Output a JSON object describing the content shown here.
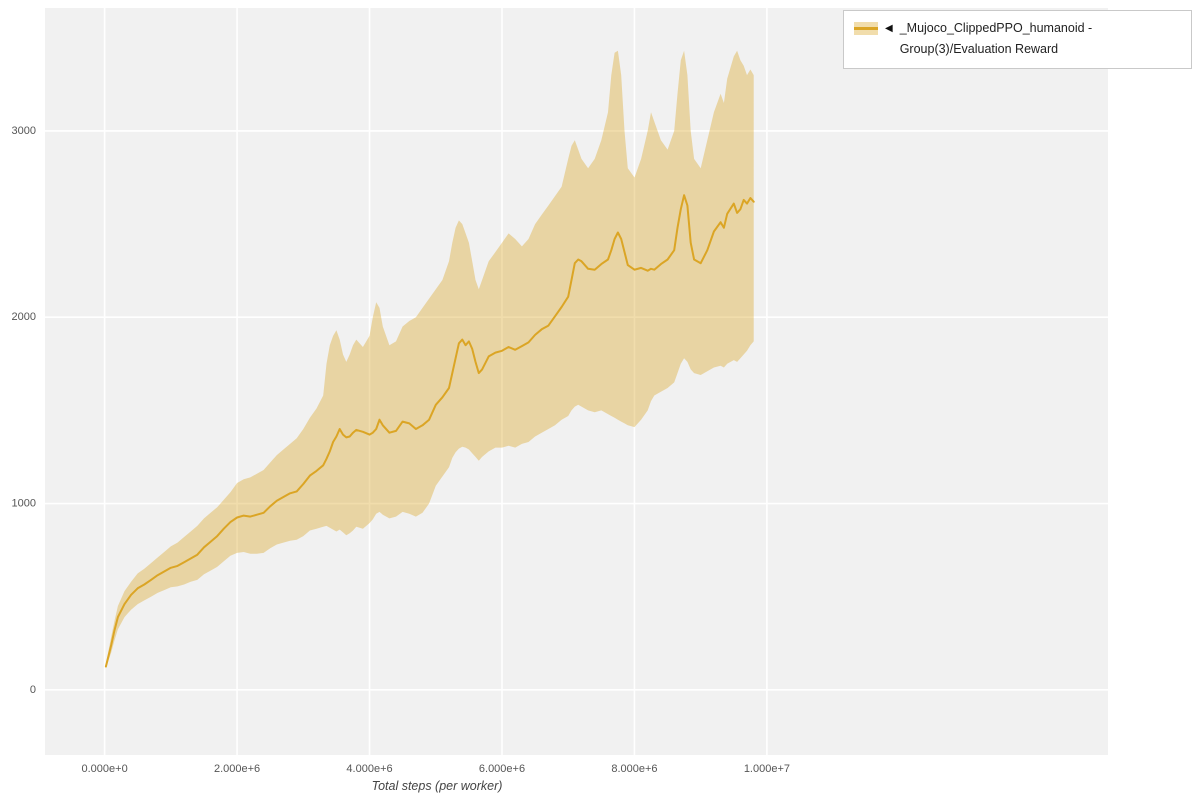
{
  "legend": {
    "marker": "◀",
    "label": "_Mujoco_ClippedPPO_humanoid - Group(3)/Evaluation Reward"
  },
  "chart_data": {
    "type": "line",
    "title": "",
    "xlabel": "Total steps (per worker)",
    "ylabel": "",
    "legend_position": "top-right-outside",
    "grid": true,
    "xlim": [
      -900000,
      15150000
    ],
    "ylim": [
      -350,
      3660
    ],
    "x_ticks": {
      "values": [
        0,
        2000000,
        4000000,
        6000000,
        8000000,
        10000000
      ],
      "labels": [
        "0.000e+0",
        "2.000e+6",
        "4.000e+6",
        "6.000e+6",
        "8.000e+6",
        "1.000e+7"
      ]
    },
    "y_ticks": {
      "values": [
        0,
        1000,
        2000,
        3000
      ],
      "labels": [
        "0",
        "1000",
        "2000",
        "3000"
      ]
    },
    "colors": {
      "line": "#DBA525",
      "band": "#DBA525",
      "band_opacity": 0.38,
      "plot_bg": "#f1f1f1",
      "grid": "#ffffff",
      "tick_text": "#555555"
    },
    "series": [
      {
        "name": "_Mujoco_ClippedPPO_humanoid - Group(3)/Evaluation Reward",
        "point_format": [
          "x_millions",
          "lower",
          "mean",
          "upper"
        ],
        "points": [
          [
            0.02,
            115,
            125,
            140
          ],
          [
            0.1,
            200,
            240,
            285
          ],
          [
            0.15,
            265,
            320,
            370
          ],
          [
            0.2,
            325,
            390,
            450
          ],
          [
            0.3,
            390,
            460,
            530
          ],
          [
            0.4,
            430,
            510,
            580
          ],
          [
            0.5,
            460,
            545,
            625
          ],
          [
            0.6,
            480,
            565,
            650
          ],
          [
            0.7,
            500,
            590,
            680
          ],
          [
            0.8,
            520,
            615,
            710
          ],
          [
            0.9,
            535,
            635,
            740
          ],
          [
            1.0,
            550,
            655,
            770
          ],
          [
            1.1,
            555,
            665,
            790
          ],
          [
            1.2,
            565,
            685,
            820
          ],
          [
            1.3,
            580,
            705,
            850
          ],
          [
            1.4,
            590,
            725,
            880
          ],
          [
            1.5,
            620,
            765,
            920
          ],
          [
            1.6,
            640,
            795,
            950
          ],
          [
            1.7,
            660,
            825,
            980
          ],
          [
            1.8,
            690,
            865,
            1020
          ],
          [
            1.9,
            720,
            900,
            1060
          ],
          [
            2.0,
            735,
            925,
            1110
          ],
          [
            2.1,
            740,
            935,
            1130
          ],
          [
            2.2,
            730,
            930,
            1140
          ],
          [
            2.3,
            730,
            940,
            1160
          ],
          [
            2.4,
            735,
            950,
            1180
          ],
          [
            2.5,
            760,
            985,
            1220
          ],
          [
            2.6,
            780,
            1015,
            1260
          ],
          [
            2.7,
            790,
            1035,
            1290
          ],
          [
            2.8,
            800,
            1055,
            1320
          ],
          [
            2.9,
            805,
            1065,
            1350
          ],
          [
            3.0,
            825,
            1105,
            1400
          ],
          [
            3.1,
            855,
            1150,
            1460
          ],
          [
            3.2,
            865,
            1175,
            1510
          ],
          [
            3.3,
            875,
            1205,
            1580
          ],
          [
            3.35,
            880,
            1240,
            1750
          ],
          [
            3.4,
            870,
            1280,
            1850
          ],
          [
            3.45,
            860,
            1330,
            1900
          ],
          [
            3.5,
            850,
            1360,
            1930
          ],
          [
            3.55,
            860,
            1400,
            1880
          ],
          [
            3.6,
            845,
            1370,
            1800
          ],
          [
            3.65,
            830,
            1355,
            1760
          ],
          [
            3.7,
            840,
            1360,
            1800
          ],
          [
            3.75,
            855,
            1380,
            1850
          ],
          [
            3.8,
            875,
            1395,
            1880
          ],
          [
            3.9,
            865,
            1385,
            1840
          ],
          [
            4.0,
            895,
            1370,
            1900
          ],
          [
            4.05,
            915,
            1380,
            2000
          ],
          [
            4.1,
            945,
            1400,
            2080
          ],
          [
            4.15,
            955,
            1450,
            2050
          ],
          [
            4.2,
            940,
            1420,
            1950
          ],
          [
            4.3,
            920,
            1380,
            1850
          ],
          [
            4.4,
            930,
            1390,
            1870
          ],
          [
            4.5,
            955,
            1440,
            1950
          ],
          [
            4.6,
            945,
            1430,
            1980
          ],
          [
            4.7,
            930,
            1400,
            2000
          ],
          [
            4.8,
            950,
            1420,
            2050
          ],
          [
            4.9,
            1000,
            1450,
            2100
          ],
          [
            5.0,
            1095,
            1530,
            2150
          ],
          [
            5.1,
            1145,
            1570,
            2200
          ],
          [
            5.2,
            1195,
            1620,
            2300
          ],
          [
            5.25,
            1245,
            1700,
            2400
          ],
          [
            5.3,
            1275,
            1780,
            2480
          ],
          [
            5.35,
            1295,
            1860,
            2520
          ],
          [
            5.4,
            1305,
            1880,
            2500
          ],
          [
            5.45,
            1300,
            1850,
            2450
          ],
          [
            5.5,
            1290,
            1870,
            2400
          ],
          [
            5.55,
            1270,
            1830,
            2300
          ],
          [
            5.6,
            1250,
            1760,
            2200
          ],
          [
            5.65,
            1230,
            1700,
            2150
          ],
          [
            5.7,
            1250,
            1720,
            2200
          ],
          [
            5.8,
            1280,
            1790,
            2300
          ],
          [
            5.9,
            1300,
            1810,
            2350
          ],
          [
            6.0,
            1300,
            1820,
            2400
          ],
          [
            6.1,
            1310,
            1840,
            2450
          ],
          [
            6.2,
            1300,
            1825,
            2420
          ],
          [
            6.3,
            1320,
            1845,
            2380
          ],
          [
            6.4,
            1330,
            1865,
            2420
          ],
          [
            6.5,
            1360,
            1905,
            2500
          ],
          [
            6.6,
            1380,
            1935,
            2550
          ],
          [
            6.7,
            1400,
            1955,
            2600
          ],
          [
            6.8,
            1420,
            2005,
            2650
          ],
          [
            6.9,
            1450,
            2055,
            2700
          ],
          [
            7.0,
            1470,
            2110,
            2850
          ],
          [
            7.05,
            1500,
            2200,
            2920
          ],
          [
            7.1,
            1520,
            2290,
            2950
          ],
          [
            7.15,
            1530,
            2310,
            2900
          ],
          [
            7.2,
            1520,
            2300,
            2850
          ],
          [
            7.3,
            1500,
            2260,
            2800
          ],
          [
            7.4,
            1490,
            2255,
            2850
          ],
          [
            7.5,
            1500,
            2285,
            2950
          ],
          [
            7.6,
            1480,
            2310,
            3100
          ],
          [
            7.65,
            1470,
            2360,
            3300
          ],
          [
            7.7,
            1460,
            2420,
            3420
          ],
          [
            7.75,
            1450,
            2455,
            3430
          ],
          [
            7.8,
            1440,
            2420,
            3300
          ],
          [
            7.85,
            1430,
            2350,
            3000
          ],
          [
            7.9,
            1420,
            2280,
            2800
          ],
          [
            8.0,
            1410,
            2255,
            2750
          ],
          [
            8.1,
            1450,
            2265,
            2850
          ],
          [
            8.2,
            1500,
            2250,
            3000
          ],
          [
            8.25,
            1550,
            2260,
            3100
          ],
          [
            8.3,
            1580,
            2255,
            3050
          ],
          [
            8.4,
            1600,
            2285,
            2950
          ],
          [
            8.5,
            1620,
            2310,
            2900
          ],
          [
            8.6,
            1650,
            2360,
            3000
          ],
          [
            8.65,
            1700,
            2480,
            3200
          ],
          [
            8.7,
            1750,
            2580,
            3380
          ],
          [
            8.75,
            1780,
            2655,
            3430
          ],
          [
            8.8,
            1760,
            2600,
            3300
          ],
          [
            8.85,
            1720,
            2400,
            3000
          ],
          [
            8.9,
            1700,
            2310,
            2850
          ],
          [
            9.0,
            1690,
            2290,
            2800
          ],
          [
            9.1,
            1710,
            2360,
            2950
          ],
          [
            9.2,
            1730,
            2460,
            3100
          ],
          [
            9.3,
            1740,
            2510,
            3200
          ],
          [
            9.35,
            1730,
            2480,
            3150
          ],
          [
            9.4,
            1750,
            2555,
            3280
          ],
          [
            9.5,
            1770,
            2610,
            3400
          ],
          [
            9.55,
            1760,
            2560,
            3430
          ],
          [
            9.6,
            1780,
            2580,
            3380
          ],
          [
            9.65,
            1800,
            2630,
            3350
          ],
          [
            9.7,
            1820,
            2610,
            3300
          ],
          [
            9.75,
            1850,
            2640,
            3330
          ],
          [
            9.8,
            1870,
            2620,
            3300
          ]
        ]
      }
    ]
  }
}
